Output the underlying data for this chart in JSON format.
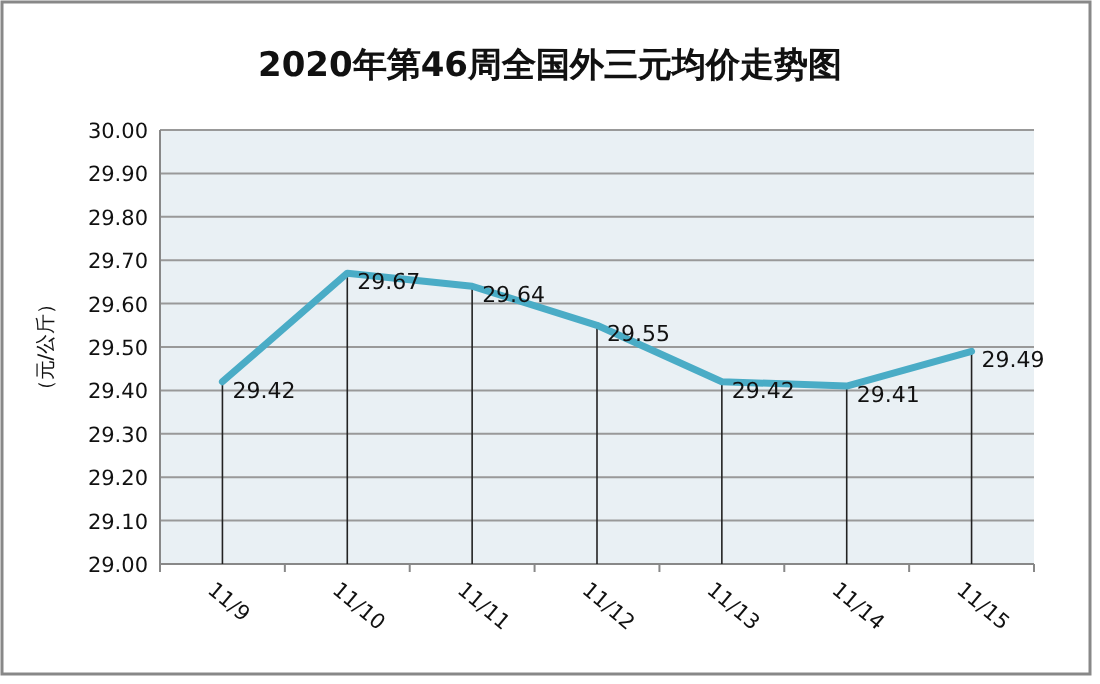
{
  "chart_data": {
    "type": "line",
    "title": "2020年第46周全国外三元均价走势图",
    "ylabel": "（元/公斤）",
    "categories": [
      "11/9",
      "11/10",
      "11/11",
      "11/12",
      "11/13",
      "11/14",
      "11/15"
    ],
    "series": [
      {
        "color": "#4aacc6",
        "values": [
          29.42,
          29.67,
          29.64,
          29.55,
          29.42,
          29.41,
          29.49
        ]
      }
    ],
    "ylim": [
      29.0,
      30.0
    ],
    "yticks": [
      {
        "value": 29.0,
        "label": "29.00"
      },
      {
        "value": 29.1,
        "label": "29.10"
      },
      {
        "value": 29.2,
        "label": "29.20"
      },
      {
        "value": 29.3,
        "label": "29.30"
      },
      {
        "value": 29.4,
        "label": "29.40"
      },
      {
        "value": 29.5,
        "label": "29.50"
      },
      {
        "value": 29.6,
        "label": "29.60"
      },
      {
        "value": 29.7,
        "label": "29.70"
      },
      {
        "value": 29.8,
        "label": "29.80"
      },
      {
        "value": 29.9,
        "label": "29.90"
      },
      {
        "value": 30.0,
        "label": "30.00"
      }
    ],
    "grid": "y",
    "data_labels": true,
    "marker": "none",
    "line_style": "solid"
  }
}
